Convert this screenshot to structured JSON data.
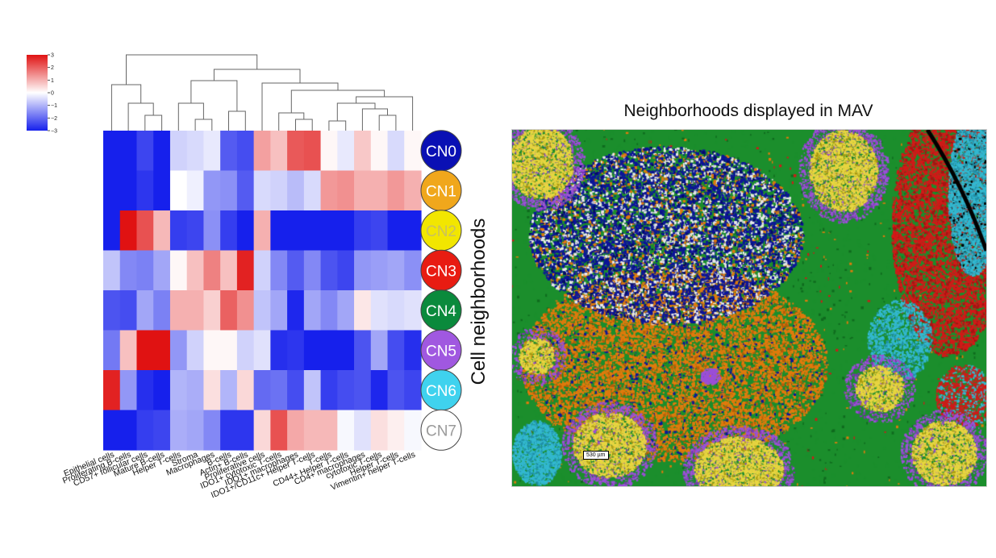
{
  "chart_data": {
    "type": "heatmap",
    "title": "",
    "ylabel": "Cell neighborhoods",
    "colorbar": {
      "min": -3,
      "max": 3,
      "ticks": [
        "3",
        "2",
        "1",
        "0",
        "−1",
        "−2",
        "−3"
      ]
    },
    "columns": [
      "Epithelial cells",
      "Proliferating B-cells",
      "CD57+ follicular cells",
      "Mature B-cells",
      "Helper T-cells",
      "Stroma",
      "Macrophages",
      "B-cells",
      "Actin+ B-cells",
      "Proliferative cells",
      "IDO1+ cytotoxic T-cells",
      "IDO1+ macrophages",
      "IDO1+/CD11c+ Helper T-cells",
      "T-cells",
      "CD44+ Helper T-cells",
      "CD4+ macrophages",
      "cytotoxic T-cells",
      "Helper T-cells",
      "Vimentin+ helper T-cells"
    ],
    "rows": [
      "CN0",
      "CN1",
      "CN2",
      "CN3",
      "CN4",
      "CN5",
      "CN6",
      "CN7"
    ],
    "row_colors": [
      "#0a10b4",
      "#f0a71c",
      "#f2e600",
      "#e81c12",
      "#0a8a3c",
      "#a058e0",
      "#3fd2ee",
      "#ffffff"
    ],
    "row_text_colors": [
      "#ffffff",
      "#ffffff",
      "#c9c060",
      "#ffffff",
      "#ffffff",
      "#ffffff",
      "#ffffff",
      "#9a9a9a"
    ],
    "values": [
      [
        -3,
        -3,
        -2.5,
        -3,
        -0.6,
        -0.5,
        -0.3,
        -2.2,
        -2.4,
        1.2,
        0.8,
        2.1,
        2.2,
        0.1,
        -0.3,
        0.7,
        0.1,
        -0.5,
        0.1
      ],
      [
        -3,
        -3,
        -2.7,
        -3,
        0.0,
        -0.2,
        -1.4,
        -1.5,
        -2.2,
        -0.5,
        -0.6,
        -0.9,
        -0.5,
        1.3,
        1.4,
        1.0,
        1.0,
        1.3,
        1.0
      ],
      [
        -3,
        3,
        2.2,
        0.9,
        -2.6,
        -2.5,
        -1.5,
        -2.6,
        -3,
        1.0,
        -3,
        -3,
        -3,
        -3,
        -3,
        -2.6,
        -2.5,
        -3,
        -3
      ],
      [
        -0.8,
        -1.6,
        -1.7,
        -1.2,
        0.1,
        0.8,
        1.6,
        0.8,
        2.8,
        -0.6,
        -1.6,
        -2.2,
        -1.6,
        -2.3,
        -2.5,
        -1.4,
        -1.3,
        -1.2,
        -1.5
      ],
      [
        -2.3,
        -2.4,
        -1.2,
        -1.7,
        1.0,
        1.0,
        0.6,
        2.0,
        1.4,
        -0.8,
        -1.2,
        -2.9,
        -1.2,
        -1.6,
        -1.2,
        0.3,
        -0.4,
        -0.5,
        -0.4
      ],
      [
        -1.8,
        0.8,
        3,
        3,
        -1.4,
        -0.6,
        0.1,
        0.1,
        -0.6,
        -0.4,
        -2.8,
        -2.7,
        -3,
        -3,
        -3,
        -2.3,
        -1.2,
        -2.4,
        -2.8
      ],
      [
        2.8,
        -1.4,
        -2.8,
        -3,
        -1.0,
        -1.1,
        0.4,
        -1.0,
        0.5,
        -2.0,
        -1.9,
        -2.4,
        -0.8,
        -2.6,
        -2.4,
        -2.3,
        -2.9,
        -2.3,
        -2.5
      ],
      [
        -3,
        -3,
        -2.6,
        -2.5,
        -1.1,
        -1.2,
        -1.6,
        -2.7,
        -2.7,
        0.5,
        2.2,
        1.1,
        0.9,
        0.9,
        -0.1,
        -0.4,
        0.4,
        0.2,
        -0.1
      ]
    ]
  },
  "map": {
    "title": "Neighborhoods displayed in MAV",
    "scale_label": "530 µm",
    "region_colors": [
      "#1b8e2c",
      "#0c1499",
      "#e07a0c",
      "#e8d640",
      "#9b4fd8",
      "#33b8d0",
      "#d01a18",
      "#e8e8e8",
      "#000000"
    ]
  }
}
